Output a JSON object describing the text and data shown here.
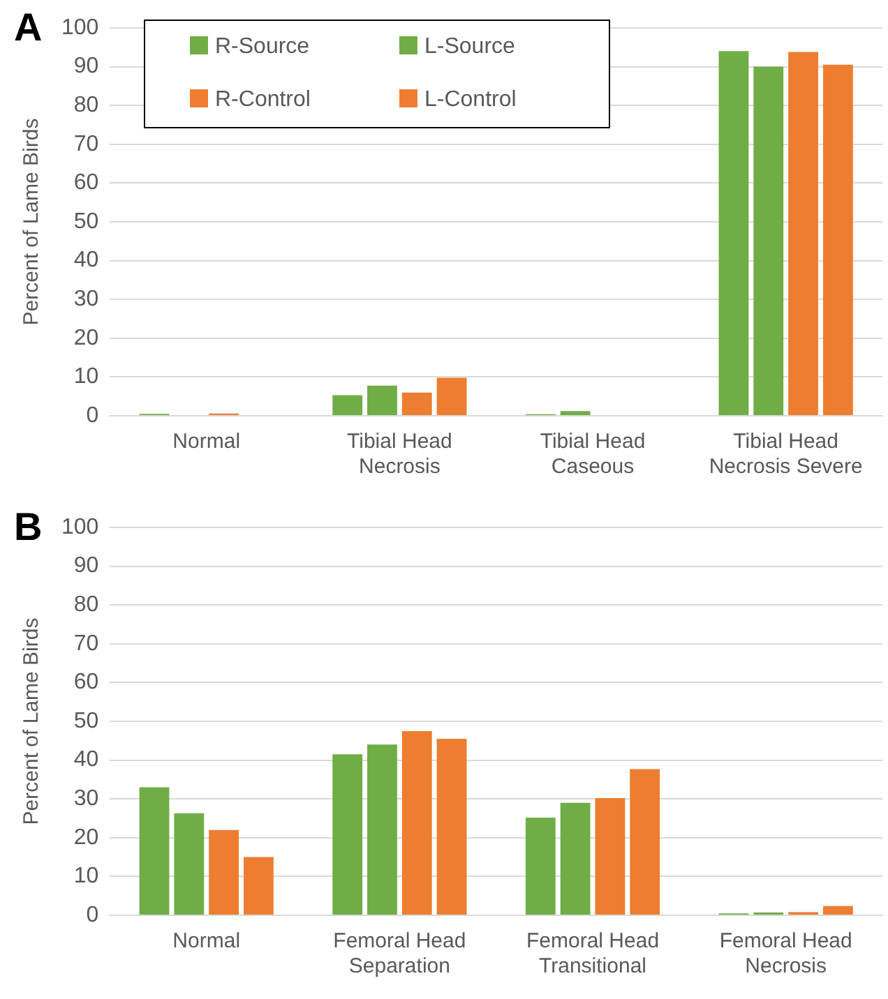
{
  "chart_data": [
    {
      "type": "bar",
      "title": "A",
      "ylabel": "Percent of Lame Birds",
      "categories": [
        "Normal",
        "Tibial Head Necrosis",
        "Tibial Head Caseous",
        "Tibial Head Necrosis Severe"
      ],
      "series": [
        {
          "name": "R-Source",
          "color": "#70ad47",
          "values": [
            0.5,
            5.3,
            0.4,
            94
          ]
        },
        {
          "name": "L-Source",
          "color": "#70ad47",
          "values": [
            0,
            7.8,
            1.2,
            90
          ]
        },
        {
          "name": "R-Control",
          "color": "#ed7d31",
          "values": [
            0.6,
            6,
            0,
            93.8
          ]
        },
        {
          "name": "L-Control",
          "color": "#ed7d31",
          "values": [
            0,
            9.8,
            0,
            90.5
          ]
        }
      ],
      "ylim": [
        0,
        100
      ],
      "yticks": [
        0,
        10,
        20,
        30,
        40,
        50,
        60,
        70,
        80,
        90,
        100
      ],
      "grid": "y",
      "legend": "top left"
    },
    {
      "type": "bar",
      "title": "B",
      "ylabel": "Percent of Lame Birds",
      "categories": [
        "Normal",
        "Femoral Head Separation",
        "Femoral Head Transitional",
        "Femoral Head Necrosis"
      ],
      "series": [
        {
          "color": "#70ad47",
          "values": [
            33,
            41.5,
            25.2,
            0.5
          ]
        },
        {
          "color": "#70ad47",
          "values": [
            26.3,
            44,
            29,
            0.7
          ]
        },
        {
          "color": "#ed7d31",
          "values": [
            22,
            47.5,
            30.2,
            0.8
          ]
        },
        {
          "color": "#ed7d31",
          "values": [
            15,
            45.5,
            37.7,
            2.4
          ]
        }
      ],
      "ylim": [
        0,
        100
      ],
      "yticks": [
        0,
        10,
        20,
        30,
        40,
        50,
        60,
        70,
        80,
        90,
        100
      ],
      "grid": "y"
    }
  ]
}
